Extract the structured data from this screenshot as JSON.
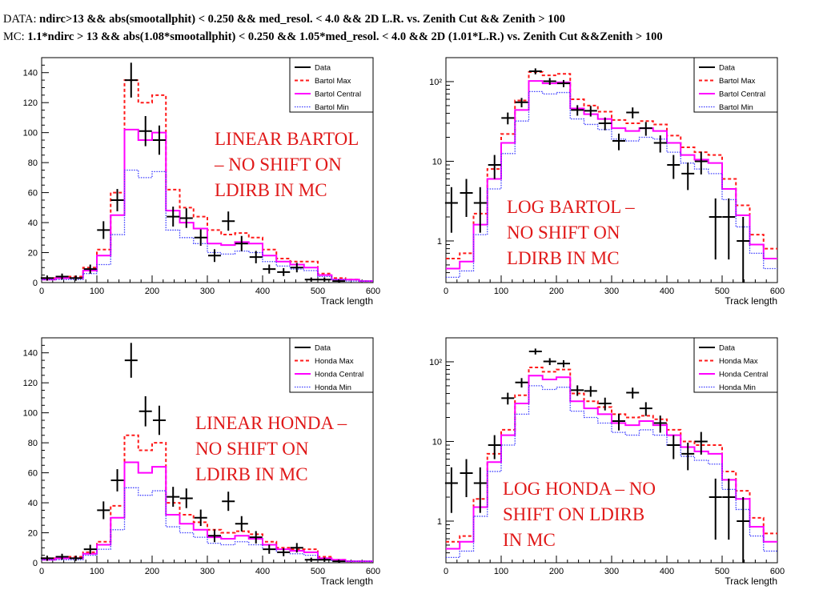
{
  "header": {
    "data_prefix": "DATA: ",
    "data_cut": "ndirc>13 && abs(smootallphit) < 0.250 && med_resol. < 4.0 && 2D L.R. vs. Zenith Cut && Zenith > 100",
    "mc_prefix": "MC: ",
    "mc_cut": "1.1*ndirc > 13 && abs(1.08*smootallphit) < 0.250 && 1.05*med_resol. < 4.0 && 2D (1.01*L.R.) vs. Zenith Cut &&Zenith > 100"
  },
  "colors": {
    "data": "#000000",
    "max": "#ff1a1a",
    "central": "#ff00ff",
    "min": "#3c3cff",
    "note": "#e01818"
  },
  "chart_data": [
    {
      "type": "histogram",
      "annotation": "LINEAR BARTOL\n– NO SHIFT ON\nLDIRB IN MC",
      "xlabel": "Track length",
      "xlim": [
        0,
        600
      ],
      "ylim": [
        0,
        150
      ],
      "log_y": false,
      "x_ticks": [
        0,
        100,
        200,
        300,
        400,
        500,
        600
      ],
      "y_ticks": [
        0,
        20,
        40,
        60,
        80,
        100,
        120,
        140
      ],
      "bin_edges": [
        0,
        25,
        50,
        75,
        100,
        125,
        150,
        175,
        200,
        225,
        250,
        275,
        300,
        325,
        350,
        375,
        400,
        425,
        450,
        475,
        500,
        525,
        550,
        575,
        600
      ],
      "legend": [
        "Data",
        "Bartol Max",
        "Bartol Central",
        "Bartol Min"
      ],
      "series": [
        {
          "name": "Bartol Max",
          "values": [
            3,
            3,
            4,
            10,
            22,
            60,
            135,
            120,
            125,
            62,
            50,
            44,
            35,
            32,
            33,
            30,
            22,
            16,
            14,
            14,
            6,
            3,
            2,
            1
          ]
        },
        {
          "name": "Bartol Central",
          "values": [
            2,
            3,
            3,
            8,
            18,
            45,
            102,
            95,
            100,
            48,
            40,
            36,
            26,
            25,
            27,
            26,
            18,
            14,
            12,
            10,
            5,
            2,
            2,
            1
          ]
        },
        {
          "name": "Bartol Min",
          "values": [
            2,
            2,
            2,
            6,
            12,
            32,
            75,
            70,
            74,
            35,
            30,
            26,
            20,
            19,
            21,
            20,
            14,
            11,
            9,
            8,
            4,
            2,
            1,
            1
          ]
        }
      ],
      "data_points": [
        {
          "x": 10,
          "y": 3
        },
        {
          "x": 37,
          "y": 4
        },
        {
          "x": 62,
          "y": 3
        },
        {
          "x": 88,
          "y": 9
        },
        {
          "x": 112,
          "y": 35
        },
        {
          "x": 137,
          "y": 55
        },
        {
          "x": 162,
          "y": 135
        },
        {
          "x": 188,
          "y": 101
        },
        {
          "x": 213,
          "y": 95
        },
        {
          "x": 238,
          "y": 44
        },
        {
          "x": 262,
          "y": 43
        },
        {
          "x": 288,
          "y": 30
        },
        {
          "x": 313,
          "y": 18
        },
        {
          "x": 338,
          "y": 41
        },
        {
          "x": 362,
          "y": 26
        },
        {
          "x": 388,
          "y": 17
        },
        {
          "x": 412,
          "y": 9
        },
        {
          "x": 438,
          "y": 7
        },
        {
          "x": 462,
          "y": 10
        },
        {
          "x": 488,
          "y": 2
        },
        {
          "x": 512,
          "y": 2
        },
        {
          "x": 538,
          "y": 1
        }
      ]
    },
    {
      "type": "histogram",
      "annotation": "LOG BARTOL –\nNO SHIFT ON\nLDIRB IN MC",
      "xlabel": "Track length",
      "xlim": [
        0,
        600
      ],
      "ylim": [
        0.3,
        200
      ],
      "log_y": true,
      "x_ticks": [
        0,
        100,
        200,
        300,
        400,
        500,
        600
      ],
      "y_ticks": [
        1,
        10,
        100
      ],
      "y_tick_labels": [
        "1",
        "10",
        "10²"
      ],
      "bin_edges": [
        0,
        25,
        50,
        75,
        100,
        125,
        150,
        175,
        200,
        225,
        250,
        275,
        300,
        325,
        350,
        375,
        400,
        425,
        450,
        475,
        500,
        525,
        550,
        575,
        600
      ],
      "legend": [
        "Data",
        "Bartol Max",
        "Bartol Central",
        "Bartol Min"
      ],
      "series": [
        {
          "name": "Bartol Max",
          "values": [
            0.6,
            0.7,
            2.2,
            8,
            22,
            58,
            132,
            120,
            125,
            60,
            50,
            42,
            33,
            30,
            32,
            29,
            21,
            15,
            13,
            12,
            6,
            2.8,
            1.2,
            0.8
          ]
        },
        {
          "name": "Bartol Central",
          "values": [
            0.45,
            0.55,
            1.6,
            6,
            17,
            44,
            102,
            95,
            98,
            46,
            39,
            34,
            26,
            24,
            26,
            24,
            17,
            12,
            10.5,
            9.5,
            4.5,
            2.1,
            0.9,
            0.6
          ]
        },
        {
          "name": "Bartol Min",
          "values": [
            0.35,
            0.42,
            1.2,
            4.5,
            12.5,
            32,
            75,
            70,
            73,
            34,
            29,
            25,
            19,
            18,
            20,
            19,
            13,
            9.5,
            8,
            7,
            3.3,
            1.5,
            0.7,
            0.45
          ]
        }
      ],
      "data_points": [
        {
          "x": 10,
          "y": 3
        },
        {
          "x": 37,
          "y": 4
        },
        {
          "x": 62,
          "y": 3
        },
        {
          "x": 88,
          "y": 9
        },
        {
          "x": 112,
          "y": 35
        },
        {
          "x": 137,
          "y": 55
        },
        {
          "x": 162,
          "y": 135
        },
        {
          "x": 188,
          "y": 101
        },
        {
          "x": 213,
          "y": 95
        },
        {
          "x": 238,
          "y": 44
        },
        {
          "x": 262,
          "y": 43
        },
        {
          "x": 288,
          "y": 30
        },
        {
          "x": 313,
          "y": 18
        },
        {
          "x": 338,
          "y": 41
        },
        {
          "x": 362,
          "y": 26
        },
        {
          "x": 388,
          "y": 17
        },
        {
          "x": 412,
          "y": 9
        },
        {
          "x": 438,
          "y": 7
        },
        {
          "x": 462,
          "y": 10
        },
        {
          "x": 488,
          "y": 2
        },
        {
          "x": 512,
          "y": 2
        },
        {
          "x": 538,
          "y": 1
        }
      ]
    },
    {
      "type": "histogram",
      "annotation": "LINEAR HONDA –\nNO SHIFT ON\nLDIRB IN MC",
      "xlabel": "Track length",
      "xlim": [
        0,
        600
      ],
      "ylim": [
        0,
        150
      ],
      "log_y": false,
      "x_ticks": [
        0,
        100,
        200,
        300,
        400,
        500,
        600
      ],
      "y_ticks": [
        0,
        20,
        40,
        60,
        80,
        100,
        120,
        140
      ],
      "bin_edges": [
        0,
        25,
        50,
        75,
        100,
        125,
        150,
        175,
        200,
        225,
        250,
        275,
        300,
        325,
        350,
        375,
        400,
        425,
        450,
        475,
        500,
        525,
        550,
        575,
        600
      ],
      "legend": [
        "Data",
        "Honda Max",
        "Honda Central",
        "Honda Min"
      ],
      "series": [
        {
          "name": "Honda Max",
          "values": [
            3,
            3,
            4,
            7,
            14,
            38,
            85,
            75,
            80,
            40,
            32,
            27,
            22,
            20,
            21,
            19,
            14,
            10,
            9,
            9,
            4,
            2,
            1,
            1
          ]
        },
        {
          "name": "Honda Central",
          "values": [
            2,
            3,
            3,
            6,
            12,
            30,
            67,
            60,
            64,
            32,
            26,
            22,
            17,
            16,
            18,
            16,
            12,
            9,
            8,
            7,
            3,
            2,
            1,
            1
          ]
        },
        {
          "name": "Honda Min",
          "values": [
            2,
            2,
            2,
            5,
            9,
            22,
            50,
            45,
            48,
            24,
            20,
            17,
            13,
            12,
            14,
            12,
            9,
            7,
            6,
            5,
            2,
            1,
            1,
            1
          ]
        }
      ],
      "data_points": [
        {
          "x": 10,
          "y": 3
        },
        {
          "x": 37,
          "y": 4
        },
        {
          "x": 62,
          "y": 3
        },
        {
          "x": 88,
          "y": 9
        },
        {
          "x": 112,
          "y": 35
        },
        {
          "x": 137,
          "y": 55
        },
        {
          "x": 162,
          "y": 135
        },
        {
          "x": 188,
          "y": 101
        },
        {
          "x": 213,
          "y": 95
        },
        {
          "x": 238,
          "y": 44
        },
        {
          "x": 262,
          "y": 43
        },
        {
          "x": 288,
          "y": 30
        },
        {
          "x": 313,
          "y": 18
        },
        {
          "x": 338,
          "y": 41
        },
        {
          "x": 362,
          "y": 26
        },
        {
          "x": 388,
          "y": 17
        },
        {
          "x": 412,
          "y": 9
        },
        {
          "x": 438,
          "y": 7
        },
        {
          "x": 462,
          "y": 10
        },
        {
          "x": 488,
          "y": 2
        },
        {
          "x": 512,
          "y": 2
        },
        {
          "x": 538,
          "y": 1
        }
      ]
    },
    {
      "type": "histogram",
      "annotation": "LOG HONDA – NO\nSHIFT ON LDIRB\nIN MC",
      "xlabel": "Track length",
      "xlim": [
        0,
        600
      ],
      "ylim": [
        0.3,
        200
      ],
      "log_y": true,
      "x_ticks": [
        0,
        100,
        200,
        300,
        400,
        500,
        600
      ],
      "y_ticks": [
        1,
        10,
        100
      ],
      "y_tick_labels": [
        "1",
        "10",
        "10²"
      ],
      "bin_edges": [
        0,
        25,
        50,
        75,
        100,
        125,
        150,
        175,
        200,
        225,
        250,
        275,
        300,
        325,
        350,
        375,
        400,
        425,
        450,
        475,
        500,
        525,
        550,
        575,
        600
      ],
      "legend": [
        "Data",
        "Honda Max",
        "Honda Central",
        "Honda Min"
      ],
      "series": [
        {
          "name": "Honda Max",
          "values": [
            0.55,
            0.65,
            1.9,
            7,
            14,
            38,
            85,
            75,
            80,
            40,
            32,
            27,
            22,
            20,
            21,
            19,
            14,
            10,
            9,
            9,
            4.2,
            2.4,
            1.1,
            0.7
          ]
        },
        {
          "name": "Honda Central",
          "values": [
            0.45,
            0.55,
            1.5,
            5.5,
            12,
            30,
            67,
            60,
            64,
            32,
            26,
            22,
            17,
            16,
            18,
            16,
            12,
            8.5,
            7.5,
            7,
            3.3,
            1.9,
            0.85,
            0.55
          ]
        },
        {
          "name": "Honda Min",
          "values": [
            0.35,
            0.42,
            1.15,
            4.2,
            9,
            22,
            50,
            45,
            48,
            24,
            20,
            17,
            13,
            12,
            14,
            12,
            9,
            6.5,
            5.8,
            5.2,
            2.5,
            1.4,
            0.65,
            0.42
          ]
        }
      ],
      "data_points": [
        {
          "x": 10,
          "y": 3
        },
        {
          "x": 37,
          "y": 4
        },
        {
          "x": 62,
          "y": 3
        },
        {
          "x": 88,
          "y": 9
        },
        {
          "x": 112,
          "y": 35
        },
        {
          "x": 137,
          "y": 55
        },
        {
          "x": 162,
          "y": 135
        },
        {
          "x": 188,
          "y": 101
        },
        {
          "x": 213,
          "y": 95
        },
        {
          "x": 238,
          "y": 44
        },
        {
          "x": 262,
          "y": 43
        },
        {
          "x": 288,
          "y": 30
        },
        {
          "x": 313,
          "y": 18
        },
        {
          "x": 338,
          "y": 41
        },
        {
          "x": 362,
          "y": 26
        },
        {
          "x": 388,
          "y": 17
        },
        {
          "x": 412,
          "y": 9
        },
        {
          "x": 438,
          "y": 7
        },
        {
          "x": 462,
          "y": 10
        },
        {
          "x": 488,
          "y": 2
        },
        {
          "x": 512,
          "y": 2
        },
        {
          "x": 538,
          "y": 1
        }
      ]
    }
  ]
}
